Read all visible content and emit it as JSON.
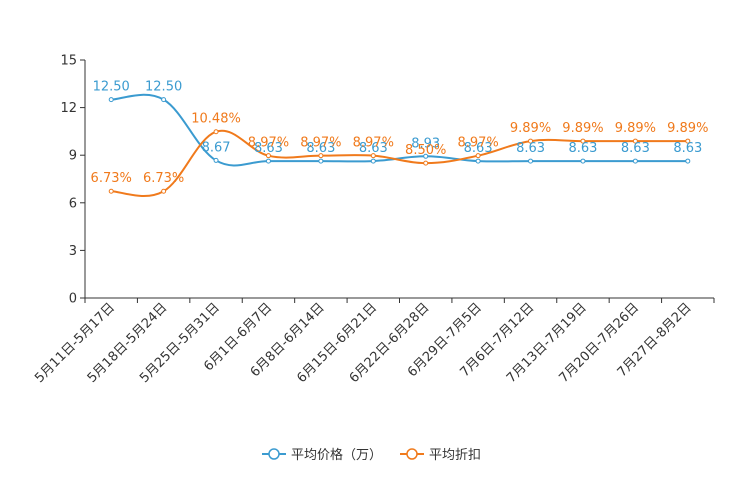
{
  "chart_data": {
    "type": "line",
    "title": "",
    "xlabel": "",
    "ylabel": "",
    "ylim": [
      0,
      15
    ],
    "yticks": [
      0,
      3,
      6,
      9,
      12,
      15
    ],
    "grid": false,
    "legend_position": "bottom-center",
    "categories": [
      "5月11日-5月17日",
      "5月18日-5月24日",
      "5月25日-5月31日",
      "6月1日-6月7日",
      "6月8日-6月14日",
      "6月15日-6月21日",
      "6月22日-6月28日",
      "6月29日-7月5日",
      "7月6日-7月12日",
      "7月13日-7月19日",
      "7月20日-7月26日",
      "7月27日-8月2日"
    ],
    "series": [
      {
        "name": "平均价格（万）",
        "color": "#3b9bd0",
        "values": [
          12.5,
          12.5,
          8.67,
          8.63,
          8.63,
          8.63,
          8.93,
          8.63,
          8.63,
          8.63,
          8.63,
          8.63
        ],
        "labels": [
          "12.50",
          "12.50",
          "8.67",
          "8.63",
          "8.63",
          "8.63",
          "8.93",
          "8.63",
          "8.63",
          "8.63",
          "8.63",
          "8.63"
        ]
      },
      {
        "name": "平均折扣",
        "color": "#f07a1c",
        "values": [
          6.73,
          6.73,
          10.48,
          8.97,
          8.97,
          8.97,
          8.5,
          8.97,
          9.89,
          9.89,
          9.89,
          9.89
        ],
        "labels": [
          "6.73%",
          "6.73%",
          "10.48%",
          "8.97%",
          "8.97%",
          "8.97%",
          "8.50%",
          "8.97%",
          "9.89%",
          "9.89%",
          "9.89%",
          "9.89%"
        ]
      }
    ]
  }
}
